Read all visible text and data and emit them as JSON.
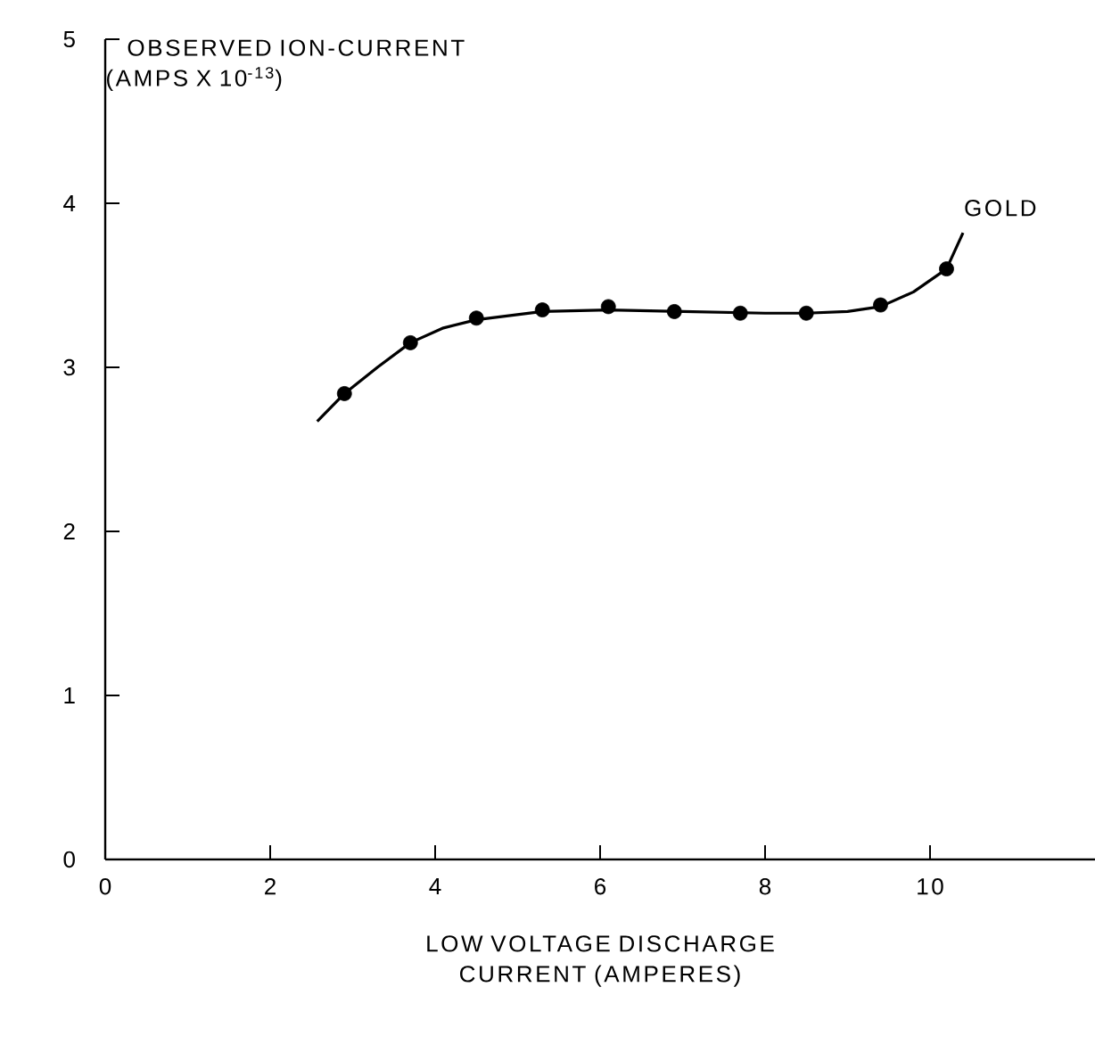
{
  "chart_data": {
    "type": "scatter",
    "xlabel": "LOW VOLTAGE DISCHARGE CURRENT (AMPERES)",
    "ylabel": "OBSERVED ION-CURRENT (AMPS X 10$^{-13}$)",
    "xlim": [
      0,
      12
    ],
    "ylim": [
      0,
      5
    ],
    "xticks": [
      0,
      2,
      4,
      6,
      8,
      10
    ],
    "yticks": [
      0,
      1,
      2,
      3,
      4,
      5
    ],
    "marker": "circle",
    "series": [
      {
        "color": "#000000",
        "x": [
          2.9,
          3.7,
          4.5,
          5.3,
          6.1,
          6.9,
          7.7,
          8.5,
          9.4,
          10.2
        ],
        "values": [
          2.84,
          3.15,
          3.3,
          3.35,
          3.37,
          3.34,
          3.33,
          3.33,
          3.38,
          3.6
        ]
      },
      {
        "type": "line",
        "color": "#000000",
        "marker": "none",
        "x": [
          2.57,
          2.9,
          3.3,
          3.7,
          4.1,
          4.5,
          5.3,
          6.1,
          7.0,
          8.0,
          8.5,
          9.0,
          9.4,
          9.8,
          10.2,
          10.4
        ],
        "values": [
          2.67,
          2.84,
          3.0,
          3.15,
          3.24,
          3.29,
          3.34,
          3.35,
          3.34,
          3.33,
          3.33,
          3.34,
          3.37,
          3.46,
          3.6,
          3.82
        ]
      }
    ],
    "annotations": [
      {
        "text": "GOLD",
        "x": 10.4,
        "y": 3.85
      }
    ]
  }
}
